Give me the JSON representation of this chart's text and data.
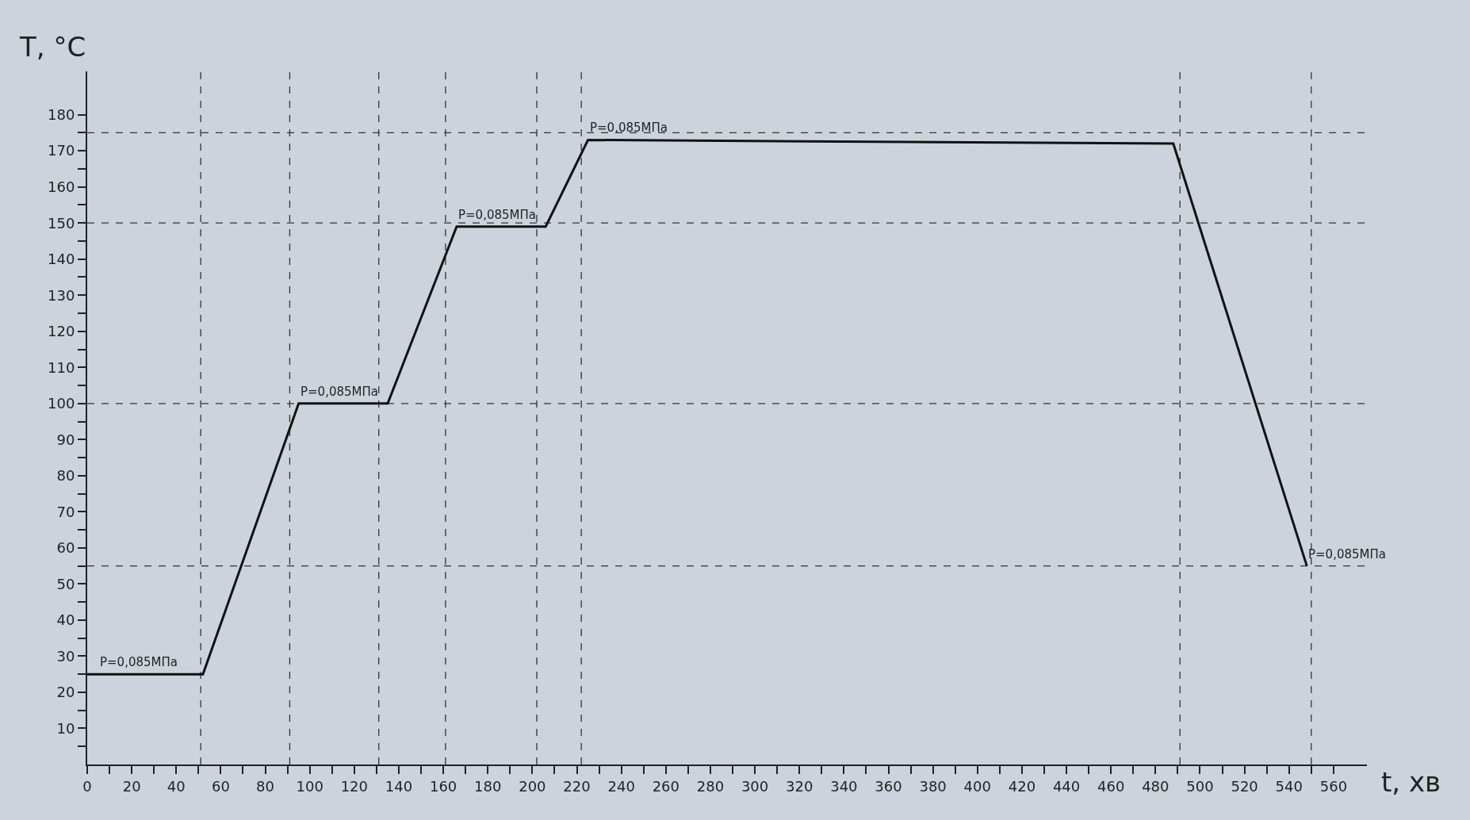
{
  "chart_data": {
    "type": "line",
    "xlabel": "t, хв",
    "ylabel": "T, °C",
    "x": [
      0,
      52,
      95,
      135,
      166,
      206,
      225,
      488,
      548
    ],
    "series": [
      {
        "color": "#111111",
        "values": [
          25,
          25,
          100,
          100,
          149,
          149,
          173,
          172,
          55
        ]
      }
    ],
    "xlim": [
      0,
      575
    ],
    "ylim": [
      0,
      192
    ],
    "xticks": [
      0,
      {
        "value": 10,
        "label": null
      },
      20,
      {
        "value": 30,
        "label": null
      },
      40,
      {
        "value": 50,
        "label": null
      },
      60,
      {
        "value": 70,
        "label": null
      },
      80,
      {
        "value": 90,
        "label": null
      },
      100,
      {
        "value": 110,
        "label": null
      },
      120,
      {
        "value": 130,
        "label": null
      },
      140,
      {
        "value": 150,
        "label": null
      },
      160,
      {
        "value": 170,
        "label": null
      },
      180,
      {
        "value": 190,
        "label": null
      },
      200,
      {
        "value": 210,
        "label": null
      },
      220,
      {
        "value": 230,
        "label": null
      },
      240,
      {
        "value": 250,
        "label": null
      },
      260,
      {
        "value": 270,
        "label": null
      },
      280,
      {
        "value": 290,
        "label": null
      },
      300,
      {
        "value": 310,
        "label": null
      },
      320,
      {
        "value": 330,
        "label": null
      },
      340,
      {
        "value": 350,
        "label": null
      },
      360,
      {
        "value": 370,
        "label": null
      },
      380,
      {
        "value": 390,
        "label": null
      },
      400,
      {
        "value": 410,
        "label": null
      },
      420,
      {
        "value": 430,
        "label": null
      },
      440,
      {
        "value": 450,
        "label": null
      },
      460,
      {
        "value": 470,
        "label": null
      },
      480,
      {
        "value": 490,
        "label": null
      },
      500,
      {
        "value": 510,
        "label": null
      },
      520,
      {
        "value": 530,
        "label": null
      },
      540,
      {
        "value": 550,
        "label": null
      },
      560
    ],
    "yticks": [
      {
        "value": 5,
        "label": null
      },
      10,
      {
        "value": 15,
        "label": null
      },
      20,
      {
        "value": 25,
        "label": null
      },
      30,
      {
        "value": 35,
        "label": null
      },
      40,
      {
        "value": 45,
        "label": null
      },
      50,
      {
        "value": 55,
        "label": null
      },
      60,
      {
        "value": 65,
        "label": null
      },
      70,
      {
        "value": 75,
        "label": null
      },
      80,
      {
        "value": 85,
        "label": null
      },
      90,
      {
        "value": 95,
        "label": null
      },
      100,
      {
        "value": 105,
        "label": null
      },
      110,
      {
        "value": 115,
        "label": null
      },
      120,
      {
        "value": 125,
        "label": null
      },
      130,
      {
        "value": 135,
        "label": null
      },
      140,
      {
        "value": 145,
        "label": null
      },
      150,
      {
        "value": 155,
        "label": null
      },
      160,
      {
        "value": 165,
        "label": null
      },
      170,
      {
        "value": 175,
        "label": null
      },
      180
    ],
    "ref_lines": [
      {
        "axis": "y",
        "value": 175,
        "line_style": "dashed"
      },
      {
        "axis": "y",
        "value": 150,
        "line_style": "dashed"
      },
      {
        "axis": "y",
        "value": 100,
        "line_style": "dashed"
      },
      {
        "axis": "y",
        "value": 55,
        "line_style": "dashed"
      },
      {
        "axis": "x",
        "value": 51,
        "line_style": "dashed"
      },
      {
        "axis": "x",
        "value": 91,
        "line_style": "dashed"
      },
      {
        "axis": "x",
        "value": 131,
        "line_style": "dashed"
      },
      {
        "axis": "x",
        "value": 161,
        "line_style": "dashed"
      },
      {
        "axis": "x",
        "value": 202,
        "line_style": "dashed"
      },
      {
        "axis": "x",
        "value": 222,
        "line_style": "dashed"
      },
      {
        "axis": "x",
        "value": 491,
        "line_style": "dashed"
      },
      {
        "axis": "x",
        "value": 550,
        "line_style": "dashed"
      }
    ],
    "annotations": [
      {
        "text": "P=0,085МПа",
        "x": 5,
        "y": 25
      },
      {
        "text": "P=0,085МПа",
        "x": 95,
        "y": 100
      },
      {
        "text": "P=0,085МПа",
        "x": 166,
        "y": 149
      },
      {
        "text": "P=0,085МПа",
        "x": 225,
        "y": 173
      },
      {
        "text": "P=0,085МПа",
        "x": 548,
        "y": 55
      }
    ],
    "grid": false,
    "marker": "none",
    "line_style": "solid"
  }
}
